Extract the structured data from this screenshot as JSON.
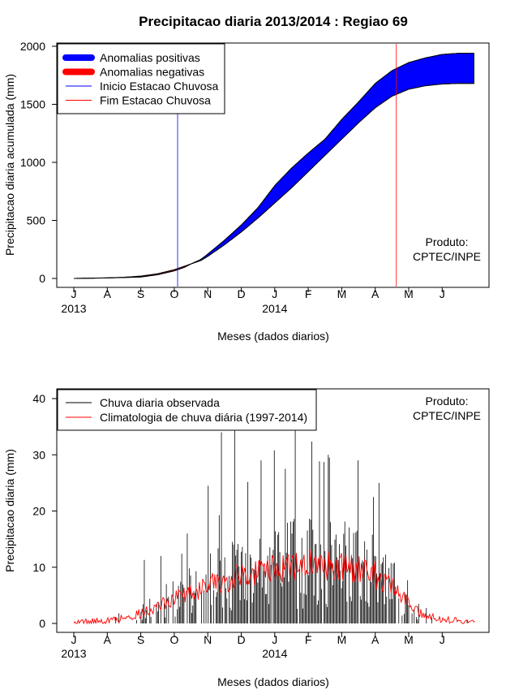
{
  "title": "Precipitacao diaria 2013/2014 : Regiao 69",
  "chart_data": [
    {
      "type": "area",
      "ylabel": "Precipitacao diaria acumulada (mm)",
      "xlabel": "Meses (dados diarios)",
      "ylim": [
        0,
        2000
      ],
      "yticks": [
        0,
        500,
        1000,
        1500,
        2000
      ],
      "month_ticks": [
        "J",
        "A",
        "S",
        "O",
        "N",
        "D",
        "J",
        "F",
        "M",
        "A",
        "M",
        "J"
      ],
      "year_labels": [
        {
          "label": "2013",
          "month_index": 0
        },
        {
          "label": "2014",
          "month_index": 6
        }
      ],
      "legend": [
        {
          "label": "Anomalias positivas",
          "color": "#0000ff",
          "style": "thick"
        },
        {
          "label": "Anomalias negativas",
          "color": "#ff0000",
          "style": "thick"
        },
        {
          "label": "Inicio Estacao Chuvosa",
          "color": "#0000ff",
          "style": "thin"
        },
        {
          "label": "Fim Estacao Chuvosa",
          "color": "#ff0000",
          "style": "thin"
        }
      ],
      "inicio_estacao_month": 3.1,
      "fim_estacao_month": 9.63,
      "observed_cumulative": {
        "months": [
          0,
          1,
          1.5,
          2,
          2.5,
          3,
          3.3,
          3.5,
          3.8,
          4,
          4.5,
          5,
          5.5,
          6,
          6.5,
          7,
          7.5,
          8,
          8.5,
          9,
          9.5,
          10,
          10.5,
          11,
          11.5,
          11.95
        ],
        "values": [
          0,
          4,
          8,
          12,
          32,
          65,
          95,
          125,
          165,
          210,
          330,
          460,
          610,
          800,
          950,
          1080,
          1200,
          1370,
          1520,
          1680,
          1790,
          1860,
          1900,
          1930,
          1940,
          1940
        ]
      },
      "climatology_cumulative": {
        "months": [
          0,
          1,
          1.5,
          2,
          2.5,
          3,
          3.3,
          3.5,
          3.8,
          4,
          4.5,
          5,
          5.5,
          6,
          6.5,
          7,
          7.5,
          8,
          8.5,
          9,
          9.5,
          10,
          10.5,
          11,
          11.5,
          11.95
        ],
        "values": [
          0,
          5,
          10,
          20,
          40,
          75,
          105,
          125,
          155,
          190,
          290,
          400,
          520,
          650,
          780,
          920,
          1060,
          1200,
          1340,
          1470,
          1570,
          1630,
          1660,
          1675,
          1680,
          1680
        ]
      },
      "annotation": [
        "Produto:",
        "CPTEC/INPE"
      ]
    },
    {
      "type": "line",
      "ylabel": "Precipitacao diaria (mm)",
      "xlabel": "Meses (dados diarios)",
      "ylim": [
        0,
        40
      ],
      "yticks": [
        0,
        10,
        20,
        30,
        40
      ],
      "month_ticks": [
        "J",
        "A",
        "S",
        "O",
        "N",
        "D",
        "J",
        "F",
        "M",
        "A",
        "M",
        "J"
      ],
      "year_labels": [
        {
          "label": "2013",
          "month_index": 0
        },
        {
          "label": "2014",
          "month_index": 6
        }
      ],
      "legend": [
        {
          "label": "Chuva diaria observada",
          "color": "#000000"
        },
        {
          "label": "Climatologia de chuva diária (1997-2014)",
          "color": "#ff0000"
        }
      ],
      "daily_peaks_approx": [
        {
          "month": 2.1,
          "value": 11.3
        },
        {
          "month": 2.6,
          "value": 12
        },
        {
          "month": 3.4,
          "value": 16
        },
        {
          "month": 4.0,
          "value": 24.5
        },
        {
          "month": 4.4,
          "value": 34
        },
        {
          "month": 4.8,
          "value": 35
        },
        {
          "month": 5.6,
          "value": 29
        },
        {
          "month": 6.3,
          "value": 27.5
        },
        {
          "month": 6.6,
          "value": 34.5
        },
        {
          "month": 7.6,
          "value": 30
        },
        {
          "month": 8.5,
          "value": 29
        },
        {
          "month": 9.1,
          "value": 25
        }
      ],
      "climatology_profile": {
        "months": [
          0,
          1,
          1.5,
          2,
          2.5,
          3,
          3.5,
          4,
          4.5,
          5,
          5.5,
          6,
          6.5,
          7,
          7.5,
          8,
          8.5,
          9,
          9.5,
          10,
          10.5,
          11,
          11.5,
          11.95
        ],
        "values": [
          0.2,
          0.5,
          1.0,
          1.8,
          3.0,
          4.5,
          5.6,
          6.8,
          7.8,
          8.5,
          9.2,
          9.8,
          10.3,
          10.5,
          10.2,
          10.0,
          9.6,
          8.6,
          6.8,
          3.5,
          1.5,
          0.8,
          0.4,
          0.3
        ]
      },
      "annotation": [
        "Produto:",
        "CPTEC/INPE"
      ]
    }
  ]
}
